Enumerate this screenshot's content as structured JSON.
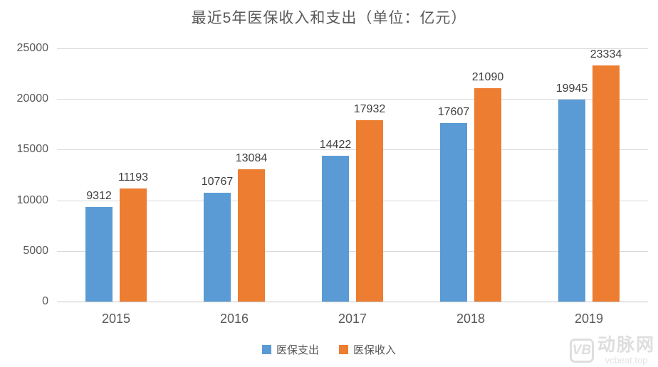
{
  "title": "最近5年医保收入和支出（单位：亿元）",
  "chart_data": {
    "type": "bar",
    "title": "最近5年医保收入和支出（单位：亿元）",
    "categories": [
      "2015",
      "2016",
      "2017",
      "2018",
      "2019"
    ],
    "series": [
      {
        "name": "医保支出",
        "color": "#5B9BD5",
        "values": [
          9312,
          10767,
          14422,
          17607,
          19945
        ]
      },
      {
        "name": "医保收入",
        "color": "#ED7D31",
        "values": [
          11193,
          13084,
          17932,
          21090,
          23334
        ]
      }
    ],
    "xlabel": "",
    "ylabel": "",
    "ylim": [
      0,
      25000
    ],
    "yticks": [
      0,
      5000,
      10000,
      15000,
      20000,
      25000
    ],
    "grid": true,
    "data_labels": true,
    "legend_position": "bottom"
  },
  "colors": {
    "expenditure": "#5B9BD5",
    "income": "#ED7D31",
    "gridline": "#D9D9D9",
    "axis_text": "#595959",
    "value_text": "#3D3D3D",
    "background": "#FFFFFF",
    "watermark": "#DEDEDE"
  },
  "watermark": {
    "logo": "VB",
    "name": "动脉网",
    "site": "vcbeat.top"
  }
}
